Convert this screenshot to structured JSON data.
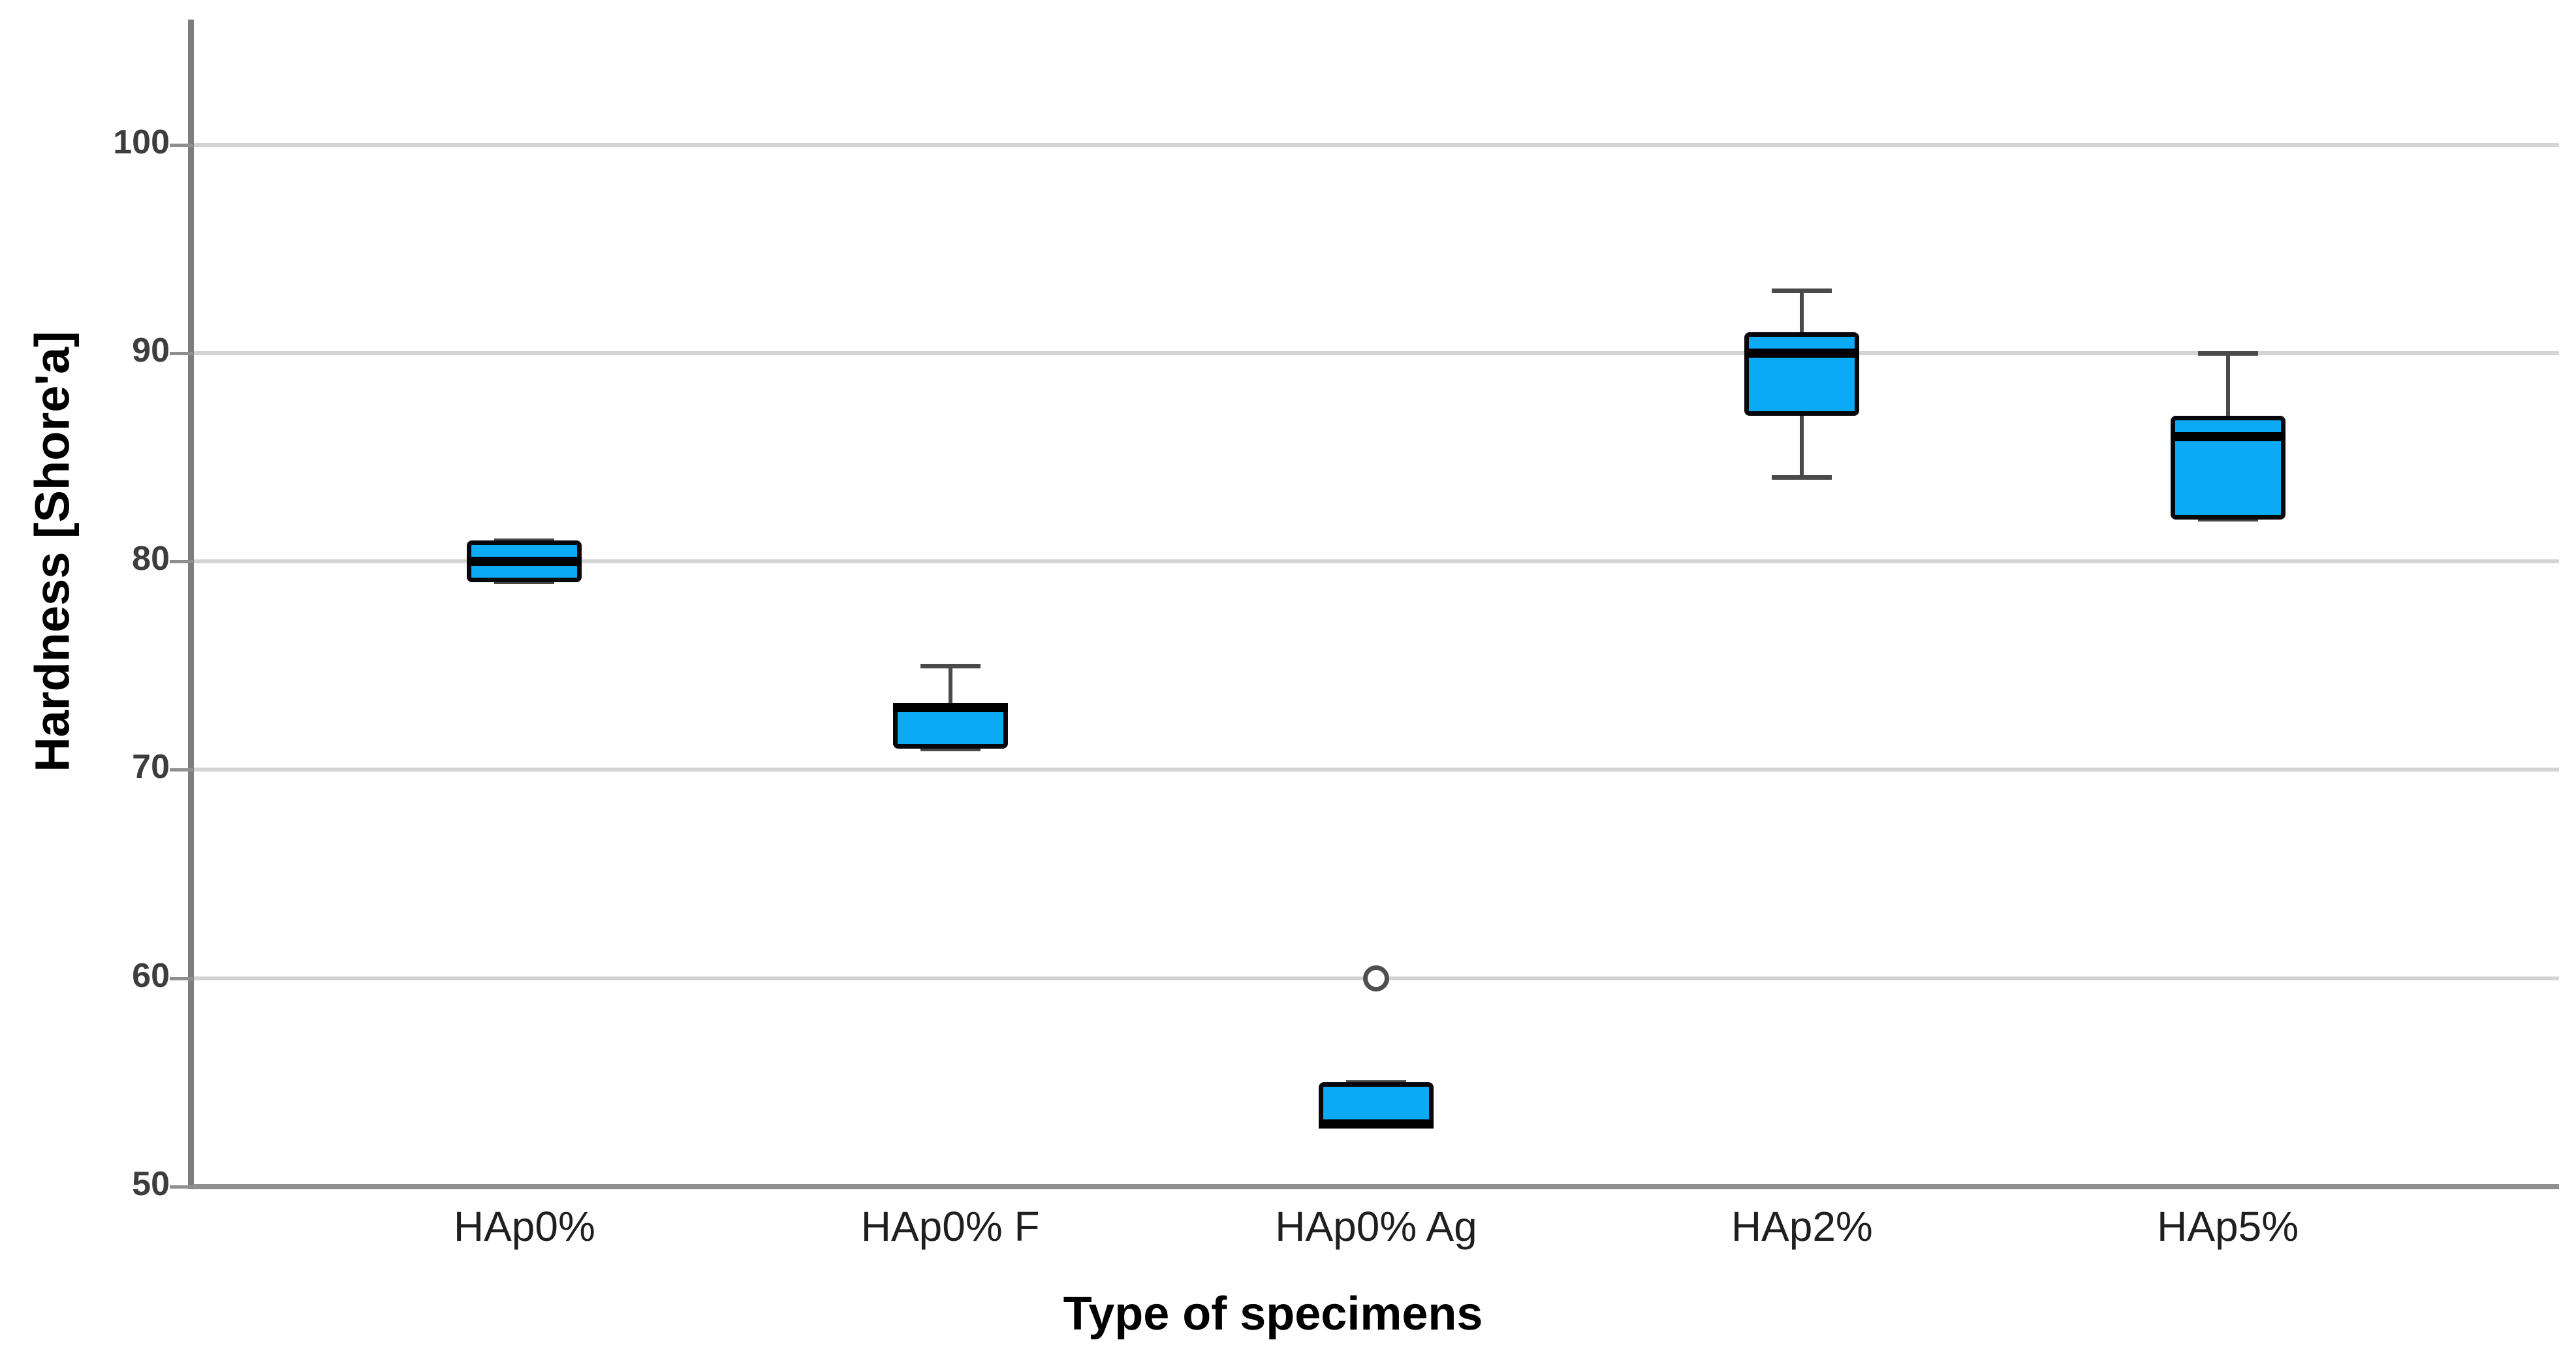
{
  "chart_data": {
    "type": "box",
    "title": "",
    "xlabel": "Type of specimens",
    "ylabel": "Hardness [Shore'a]",
    "ylim": [
      50,
      106
    ],
    "yticks": [
      50,
      60,
      70,
      80,
      90,
      100
    ],
    "grid": "horizontal",
    "legend": "none",
    "categories": [
      "HAp0%",
      "HAp0% F",
      "HAp0% Ag",
      "HAp2%",
      "HAp5%"
    ],
    "series": [
      {
        "category": "HAp0%",
        "whisker_low": 79,
        "q1": 79,
        "median": 80,
        "q3": 81,
        "whisker_high": 81,
        "outliers": []
      },
      {
        "category": "HAp0% F",
        "whisker_low": 71,
        "q1": 71,
        "median": 73,
        "q3": 73,
        "whisker_high": 75,
        "outliers": []
      },
      {
        "category": "HAp0% Ag",
        "whisker_low": 53,
        "q1": 53,
        "median": 53,
        "q3": 55,
        "whisker_high": 55,
        "outliers": [
          60
        ]
      },
      {
        "category": "HAp2%",
        "whisker_low": 84,
        "q1": 87,
        "median": 90,
        "q3": 91,
        "whisker_high": 93,
        "outliers": []
      },
      {
        "category": "HAp5%",
        "whisker_low": 82,
        "q1": 82,
        "median": 86,
        "q3": 87,
        "whisker_high": 90,
        "outliers": []
      }
    ],
    "colors": {
      "box_fill": "#0aaaf5",
      "box_border": "#08080c",
      "median": "#000000",
      "whisker": "#4a4a4a",
      "outlier_stroke": "#4f4f4f",
      "gridline": "#d4d4d4",
      "axis_line": "#7d7d7d",
      "tick_label": "#3d3d3d",
      "category_label": "#1f1f1f",
      "title": "#000000"
    }
  }
}
